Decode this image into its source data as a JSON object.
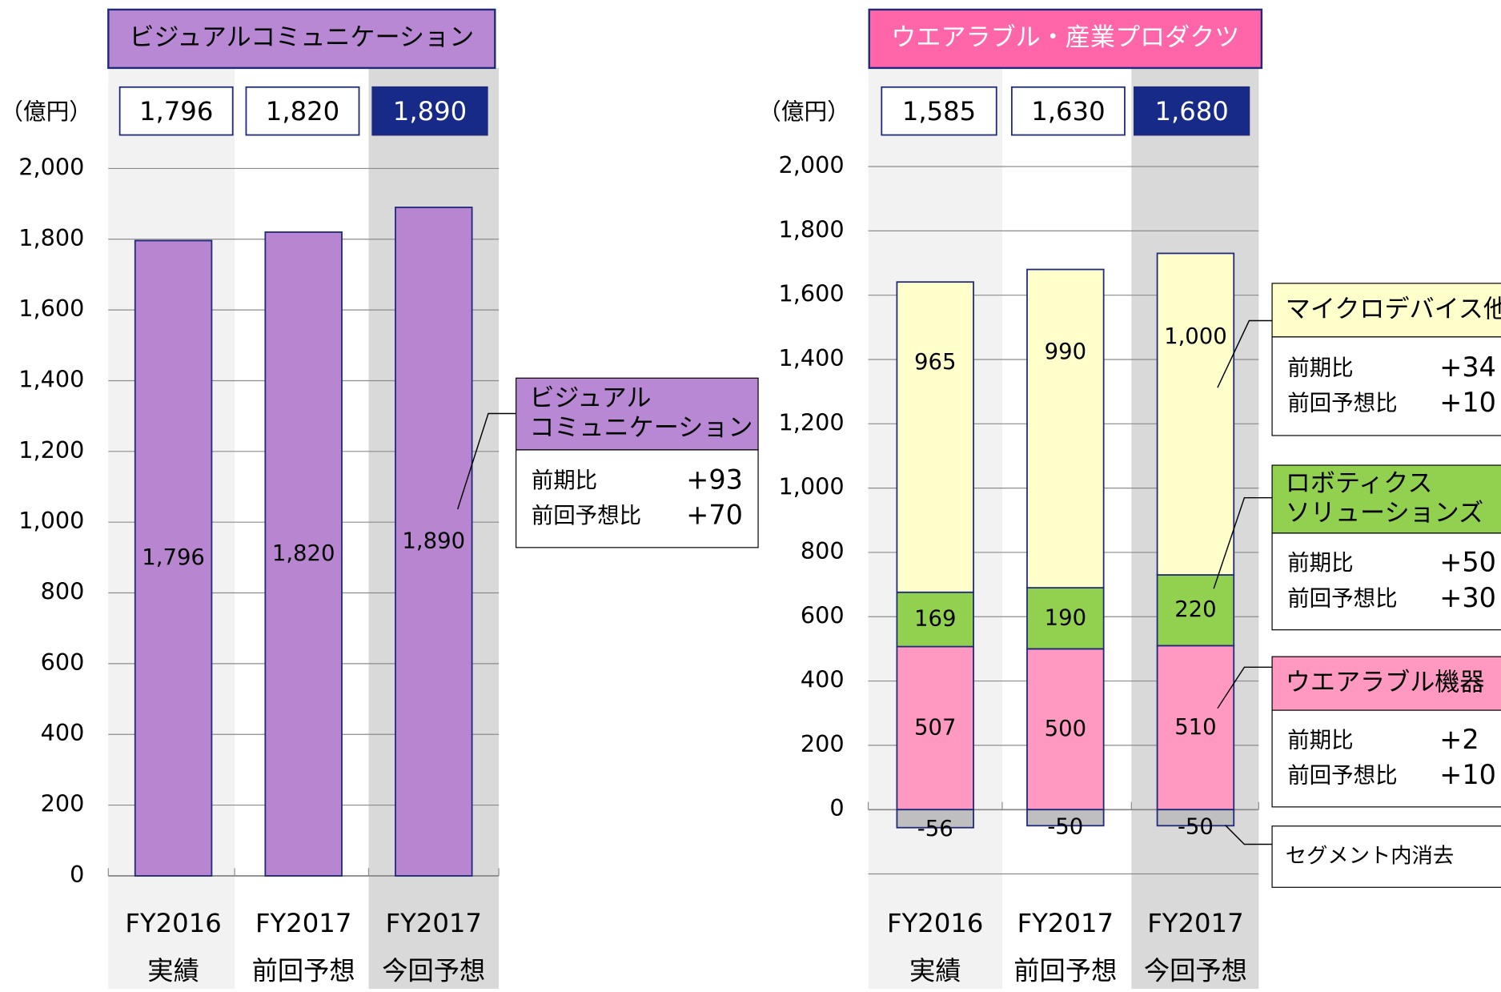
{
  "chart_data": [
    {
      "type": "bar",
      "title": "ビジュアルコミュニケーション",
      "unit": "（億円）",
      "categories": [
        [
          "FY2016",
          "実績"
        ],
        [
          "FY2017",
          "前回予想"
        ],
        [
          "FY2017",
          "今回予想"
        ]
      ],
      "totals": [
        1796,
        1820,
        1890
      ],
      "total_labels": [
        "1,796",
        "1,820",
        "1,890"
      ],
      "series": [
        {
          "name": "ビジュアルコミュニケーション",
          "color": "#b886d0",
          "values": [
            1796,
            1820,
            1890
          ],
          "value_labels": [
            "1,796",
            "1,820",
            "1,890"
          ]
        }
      ],
      "ylim": [
        0,
        2000
      ],
      "yticks": [
        0,
        200,
        400,
        600,
        800,
        {
          "value": 1000,
          "label": "1,000"
        },
        {
          "value": 1200,
          "label": "1,200"
        },
        {
          "value": 1400,
          "label": "1,400"
        },
        {
          "value": 1600,
          "label": "1,600"
        },
        {
          "value": 1800,
          "label": "1,800"
        },
        {
          "value": 2000,
          "label": "2,000"
        }
      ],
      "grid": true,
      "callouts": [
        {
          "title": [
            "ビジュアル",
            "コミュニケーション"
          ],
          "rows": [
            [
              "前期比",
              "+93"
            ],
            [
              "前回予想比",
              "+70"
            ]
          ]
        }
      ]
    },
    {
      "type": "stacked_bar",
      "title": "ウエアラブル・産業プロダクツ",
      "unit": "（億円）",
      "categories": [
        [
          "FY2016",
          "実績"
        ],
        [
          "FY2017",
          "前回予想"
        ],
        [
          "FY2017",
          "今回予想"
        ]
      ],
      "totals": [
        1585,
        1630,
        1680
      ],
      "total_labels": [
        "1,585",
        "1,630",
        "1,680"
      ],
      "series": [
        {
          "name": "ウエアラブル機器",
          "color": "#ff99c2",
          "values": [
            507,
            500,
            510
          ]
        },
        {
          "name": "ロボティクスソリューションズ",
          "color": "#92d050",
          "values": [
            169,
            190,
            220
          ]
        },
        {
          "name": "マイクロデバイス他",
          "color": "#ffffcc",
          "values": [
            965,
            990,
            1000
          ],
          "value_labels": [
            "965",
            "990",
            "1,000"
          ]
        },
        {
          "name": "セグメント内消去",
          "color": "#bfbfbf",
          "values": [
            -56,
            -50,
            -50
          ]
        }
      ],
      "ylim": [
        -200,
        2000
      ],
      "yticks": [
        0,
        200,
        400,
        600,
        800,
        {
          "value": 1000,
          "label": "1,000"
        },
        {
          "value": 1200,
          "label": "1,200"
        },
        {
          "value": 1400,
          "label": "1,400"
        },
        {
          "value": 1600,
          "label": "1,600"
        },
        {
          "value": 1800,
          "label": "1,800"
        },
        {
          "value": 2000,
          "label": "2,000"
        }
      ],
      "grid": true,
      "callouts": [
        {
          "title": [
            "マイクロデバイス他"
          ],
          "rows": [
            [
              "前期比",
              "+34"
            ],
            [
              "前回予想比",
              "+10"
            ]
          ]
        },
        {
          "title": [
            "ロボティクス",
            "ソリューションズ"
          ],
          "rows": [
            [
              "前期比",
              "+50"
            ],
            [
              "前回予想比",
              "+30"
            ]
          ]
        },
        {
          "title": [
            "ウエアラブル機器"
          ],
          "rows": [
            [
              "前期比",
              "+2"
            ],
            [
              "前回予想比",
              "+10"
            ]
          ]
        },
        {
          "title": [
            "セグメント内消去"
          ],
          "rows": []
        }
      ]
    }
  ]
}
